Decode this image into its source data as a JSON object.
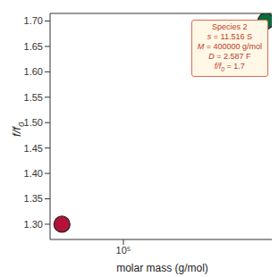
{
  "chart_data": {
    "type": "scatter",
    "x_label": "molar mass (g/mol)",
    "y_label": "f/f0",
    "log": "x",
    "xlim": [
      49000,
      435000
    ],
    "xticks": [
      {
        "value": 100000,
        "label": "10⁵"
      }
    ],
    "ylim": [
      1.27,
      1.715
    ],
    "yticks": [
      {
        "value": 1.3,
        "label": "1.30"
      },
      {
        "value": 1.35,
        "label": "1.35"
      },
      {
        "value": 1.4,
        "label": "1.40"
      },
      {
        "value": 1.45,
        "label": "1.45"
      },
      {
        "value": 1.5,
        "label": "1.50"
      },
      {
        "value": 1.55,
        "label": "1.55"
      },
      {
        "value": 1.6,
        "label": "1.60"
      },
      {
        "value": 1.65,
        "label": "1.65"
      },
      {
        "value": 1.7,
        "label": "1.70"
      }
    ],
    "grid": false,
    "marker": "circle",
    "series": [
      {
        "color": "#b5123a",
        "x": [
          55000
        ],
        "values": [
          1.3
        ]
      },
      {
        "color": "#0a6b3c",
        "x": [
          400000
        ],
        "values": [
          1.7
        ]
      }
    ],
    "annotation": {
      "title": "Species 2",
      "lines": [
        "s = 11.516 S",
        "M = 400000 g/mol",
        "D = 2.587 F",
        "f/f0 = 1.7"
      ]
    }
  }
}
